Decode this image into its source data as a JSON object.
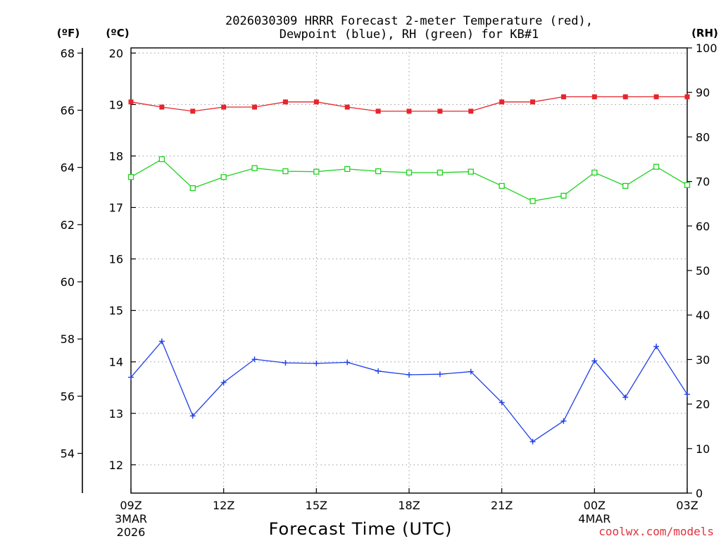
{
  "chart_data": {
    "type": "line",
    "title_line1": "2026030309 HRRR Forecast 2-meter Temperature (red),",
    "title_line2": "Dewpoint (blue), RH (green) for KB#1",
    "xlabel": "Forecast Time (UTC)",
    "credit": "coolwx.com/models",
    "left_unit_f": "(ºF)",
    "left_unit_c": "(ºC)",
    "right_unit_rh": "(RH)",
    "x_hours": [
      9,
      10,
      11,
      12,
      13,
      14,
      15,
      16,
      17,
      18,
      19,
      20,
      21,
      22,
      23,
      24,
      25,
      26,
      27
    ],
    "x_range": [
      9,
      27
    ],
    "x_ticks": [
      {
        "hour": 9,
        "label": "09Z",
        "sub1": "3MAR",
        "sub2": "2026"
      },
      {
        "hour": 12,
        "label": "12Z",
        "sub1": "",
        "sub2": ""
      },
      {
        "hour": 15,
        "label": "15Z",
        "sub1": "",
        "sub2": ""
      },
      {
        "hour": 18,
        "label": "18Z",
        "sub1": "",
        "sub2": ""
      },
      {
        "hour": 21,
        "label": "21Z",
        "sub1": "",
        "sub2": ""
      },
      {
        "hour": 24,
        "label": "00Z",
        "sub1": "4MAR",
        "sub2": ""
      },
      {
        "hour": 27,
        "label": "03Z",
        "sub1": "",
        "sub2": ""
      }
    ],
    "celsius_axis": {
      "range": [
        11.45,
        20.1
      ],
      "ticks": [
        12,
        13,
        14,
        15,
        16,
        17,
        18,
        19,
        20
      ]
    },
    "fahrenheit_axis": {
      "ticks": [
        54,
        56,
        58,
        60,
        62,
        64,
        66,
        68
      ]
    },
    "rh_axis": {
      "range": [
        0,
        100
      ],
      "ticks": [
        0,
        10,
        20,
        30,
        40,
        50,
        60,
        70,
        80,
        90,
        100
      ]
    },
    "series": [
      {
        "name": "Temperature",
        "unit": "C",
        "color": "#e8242c",
        "marker": "filled-square",
        "values": [
          19.05,
          18.95,
          18.87,
          18.95,
          18.95,
          19.05,
          19.05,
          18.95,
          18.87,
          18.87,
          18.87,
          18.87,
          19.05,
          19.05,
          19.15,
          19.15,
          19.15,
          19.15,
          19.15
        ]
      },
      {
        "name": "Dewpoint",
        "unit": "C",
        "color": "#1f3fe8",
        "marker": "plus",
        "values": [
          13.7,
          14.4,
          12.95,
          13.6,
          14.05,
          13.98,
          13.97,
          13.99,
          13.82,
          13.75,
          13.76,
          13.81,
          13.21,
          12.45,
          12.85,
          14.02,
          13.31,
          14.3,
          13.37
        ]
      },
      {
        "name": "RH",
        "unit": "%",
        "color": "#1fd21f",
        "marker": "open-square",
        "values": [
          71,
          75,
          68.5,
          71,
          73,
          72.3,
          72.2,
          72.8,
          72.3,
          72,
          72,
          72.2,
          69,
          65.6,
          66.8,
          72,
          69,
          73.3,
          69.2
        ]
      }
    ]
  }
}
